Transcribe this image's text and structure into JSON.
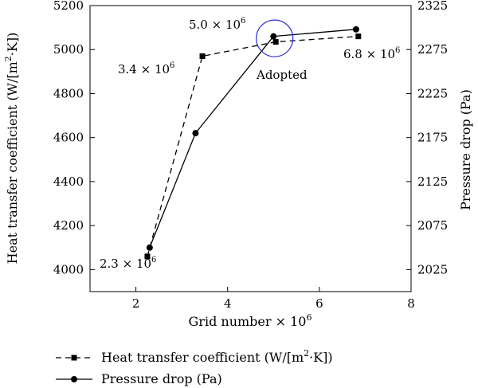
{
  "chart_data": {
    "type": "line",
    "xlabel": "Grid number",
    "xlabel_suffix_base": "× 10",
    "xlabel_suffix_exp": "6",
    "ylabel_left": "Heat transfer coefficient (W/[m",
    "ylabel_left_sup": "2",
    "ylabel_left_tail": "·K])",
    "ylabel_right": "Pressure drop (Pa)",
    "xlim": [
      1,
      8
    ],
    "x_ticks": [
      "2",
      "4",
      "6",
      "8"
    ],
    "x_tick_values": [
      2,
      4,
      6,
      8
    ],
    "ylim_left": [
      3900,
      5200
    ],
    "y_left_ticks": [
      "4000",
      "4200",
      "4400",
      "4600",
      "4800",
      "5000",
      "5200"
    ],
    "y_left_tick_values": [
      4000,
      4200,
      4400,
      4600,
      4800,
      5000,
      5200
    ],
    "ylim_right": [
      2000,
      2325
    ],
    "y_right_ticks": [
      "2025",
      "2075",
      "2125",
      "2175",
      "2225",
      "2275",
      "2325"
    ],
    "y_right_tick_values": [
      2025,
      2075,
      2125,
      2175,
      2225,
      2275,
      2325
    ],
    "series": [
      {
        "name": "Heat transfer coefficient (W/[m²·K])",
        "axis": "left",
        "style": "dashed",
        "marker": "square",
        "x": [
          2.25,
          3.45,
          5.05,
          6.85
        ],
        "y": [
          4060,
          4970,
          5035,
          5060
        ]
      },
      {
        "name": "Pressure drop (Pa)",
        "axis": "right",
        "style": "solid",
        "marker": "circle",
        "x": [
          2.3,
          3.3,
          5.0,
          6.8
        ],
        "y": [
          2050,
          2180,
          2290,
          2298
        ]
      }
    ],
    "annotations": [
      {
        "text": "2.3 × 10",
        "sup": "6",
        "color": "#000000"
      },
      {
        "text": "3.4 × 10",
        "sup": "6",
        "color": "#000000"
      },
      {
        "text": "5.0 × 10",
        "sup": "6",
        "color": "#2b2bd6"
      },
      {
        "text": "6.8 × 10",
        "sup": "6",
        "color": "#000000"
      },
      {
        "text": "Adopted",
        "sup": "",
        "color": "#000000"
      }
    ],
    "highlight_circle_color": "#2b2bd6",
    "grid": false,
    "legend_position": "bottom"
  },
  "legend": {
    "item1_label": "Heat transfer coefficient (W/[m",
    "item1_sup": "2",
    "item1_tail": "·K])",
    "item2_label": "Pressure drop (Pa)"
  }
}
